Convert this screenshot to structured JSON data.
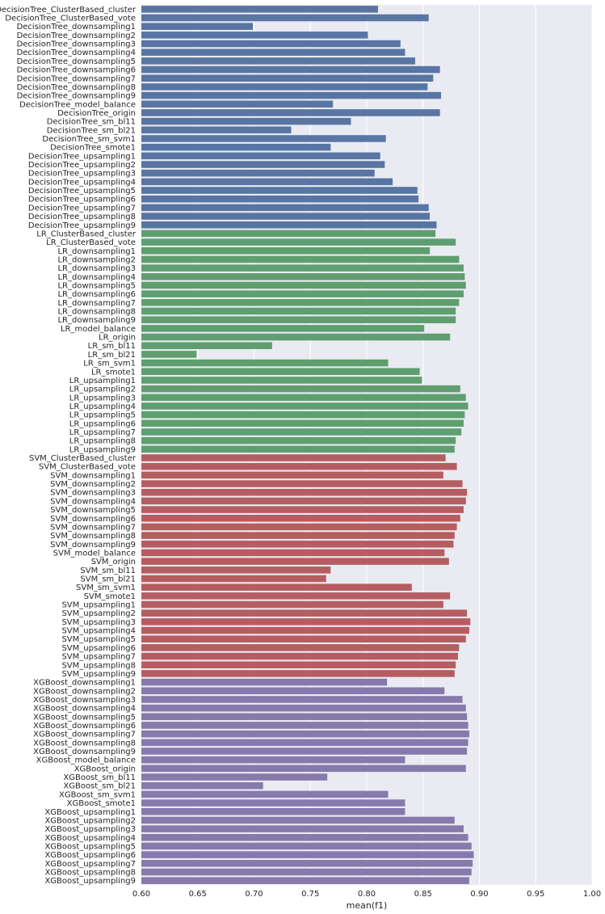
{
  "chart_data": {
    "type": "bar",
    "orientation": "horizontal",
    "xlabel": "mean(f1)",
    "ylabel": "",
    "xlim": [
      0.6,
      1.0
    ],
    "xticks": [
      "0.60",
      "0.65",
      "0.70",
      "0.75",
      "0.80",
      "0.85",
      "0.90",
      "0.95",
      "1.00"
    ],
    "grid": true,
    "categories": [
      "DecisionTree_ClusterBased_cluster",
      "DecisionTree_ClusterBased_vote",
      "DecisionTree_downsampling1",
      "DecisionTree_downsampling2",
      "DecisionTree_downsampling3",
      "DecisionTree_downsampling4",
      "DecisionTree_downsampling5",
      "DecisionTree_downsampling6",
      "DecisionTree_downsampling7",
      "DecisionTree_downsampling8",
      "DecisionTree_downsampling9",
      "DecisionTree_model_balance",
      "DecisionTree_origin",
      "DecisionTree_sm_bl11",
      "DecisionTree_sm_bl21",
      "DecisionTree_sm_svm1",
      "DecisionTree_smote1",
      "DecisionTree_upsampling1",
      "DecisionTree_upsampling2",
      "DecisionTree_upsampling3",
      "DecisionTree_upsampling4",
      "DecisionTree_upsampling5",
      "DecisionTree_upsampling6",
      "DecisionTree_upsampling7",
      "DecisionTree_upsampling8",
      "DecisionTree_upsampling9",
      "LR_ClusterBased_cluster",
      "LR_ClusterBased_vote",
      "LR_downsampling1",
      "LR_downsampling2",
      "LR_downsampling3",
      "LR_downsampling4",
      "LR_downsampling5",
      "LR_downsampling6",
      "LR_downsampling7",
      "LR_downsampling8",
      "LR_downsampling9",
      "LR_model_balance",
      "LR_origin",
      "LR_sm_bl11",
      "LR_sm_bl21",
      "LR_sm_svm1",
      "LR_smote1",
      "LR_upsampling1",
      "LR_upsampling2",
      "LR_upsampling3",
      "LR_upsampling4",
      "LR_upsampling5",
      "LR_upsampling6",
      "LR_upsampling7",
      "LR_upsampling8",
      "LR_upsampling9",
      "SVM_ClusterBased_cluster",
      "SVM_ClusterBased_vote",
      "SVM_downsampling1",
      "SVM_downsampling2",
      "SVM_downsampling3",
      "SVM_downsampling4",
      "SVM_downsampling5",
      "SVM_downsampling6",
      "SVM_downsampling7",
      "SVM_downsampling8",
      "SVM_downsampling9",
      "SVM_model_balance",
      "SVM_origin",
      "SVM_sm_bl11",
      "SVM_sm_bl21",
      "SVM_sm_svm1",
      "SVM_smote1",
      "SVM_upsampling1",
      "SVM_upsampling2",
      "SVM_upsampling3",
      "SVM_upsampling4",
      "SVM_upsampling5",
      "SVM_upsampling6",
      "SVM_upsampling7",
      "SVM_upsampling8",
      "SVM_upsampling9",
      "XGBoost_downsampling1",
      "XGBoost_downsampling2",
      "XGBoost_downsampling3",
      "XGBoost_downsampling4",
      "XGBoost_downsampling5",
      "XGBoost_downsampling6",
      "XGBoost_downsampling7",
      "XGBoost_downsampling8",
      "XGBoost_downsampling9",
      "XGBoost_model_balance",
      "XGBoost_origin",
      "XGBoost_sm_bl11",
      "XGBoost_sm_bl21",
      "XGBoost_sm_svm1",
      "XGBoost_smote1",
      "XGBoost_upsampling1",
      "XGBoost_upsampling2",
      "XGBoost_upsampling3",
      "XGBoost_upsampling4",
      "XGBoost_upsampling5",
      "XGBoost_upsampling6",
      "XGBoost_upsampling7",
      "XGBoost_upsampling8",
      "XGBoost_upsampling9"
    ],
    "values": [
      0.81,
      0.855,
      0.699,
      0.801,
      0.83,
      0.834,
      0.843,
      0.865,
      0.859,
      0.854,
      0.866,
      0.77,
      0.865,
      0.786,
      0.733,
      0.817,
      0.768,
      0.812,
      0.816,
      0.807,
      0.823,
      0.845,
      0.846,
      0.855,
      0.856,
      0.862,
      0.861,
      0.879,
      0.856,
      0.882,
      0.886,
      0.887,
      0.888,
      0.886,
      0.882,
      0.879,
      0.879,
      0.851,
      0.874,
      0.716,
      0.649,
      0.819,
      0.847,
      0.849,
      0.883,
      0.888,
      0.89,
      0.887,
      0.886,
      0.884,
      0.879,
      0.878,
      0.87,
      0.88,
      0.868,
      0.885,
      0.889,
      0.888,
      0.886,
      0.883,
      0.88,
      0.878,
      0.877,
      0.869,
      0.873,
      0.768,
      0.764,
      0.84,
      0.874,
      0.868,
      0.889,
      0.892,
      0.891,
      0.888,
      0.882,
      0.881,
      0.879,
      0.878,
      0.818,
      0.869,
      0.885,
      0.888,
      0.889,
      0.89,
      0.891,
      0.89,
      0.889,
      0.834,
      0.888,
      0.765,
      0.708,
      0.819,
      0.834,
      0.834,
      0.878,
      0.886,
      0.89,
      0.893,
      0.895,
      0.894,
      0.893,
      0.891
    ],
    "groups": [
      {
        "prefix": "DecisionTree_",
        "color": "#5875a4"
      },
      {
        "prefix": "LR_",
        "color": "#5f9e6e"
      },
      {
        "prefix": "SVM_",
        "color": "#b55d60"
      },
      {
        "prefix": "XGBoost_",
        "color": "#857aab"
      }
    ],
    "background_color": "#eaeaf2",
    "grid_color": "#ffffff"
  }
}
